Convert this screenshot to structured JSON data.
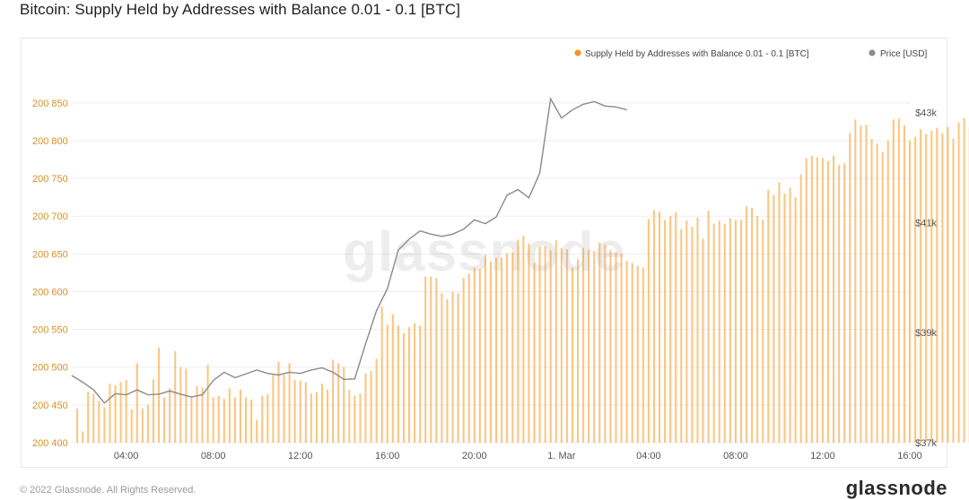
{
  "title": "Bitcoin: Supply Held by Addresses with Balance 0.01 - 0.1 [BTC]",
  "footer": {
    "copyright": "© 2022 Glassnode. All Rights Reserved.",
    "logo": "glassnode"
  },
  "watermark": "glassnode",
  "colors": {
    "supply": "#f7931a",
    "price": "#8a8a8a"
  },
  "chart_data": {
    "type": "bar",
    "title": "Bitcoin: Supply Held by Addresses with Balance 0.01 - 0.1 [BTC]",
    "x_range_hours": [
      1.5,
      40.0
    ],
    "x_ticks": [
      {
        "label": "04:00",
        "h": 4
      },
      {
        "label": "08:00",
        "h": 8
      },
      {
        "label": "12:00",
        "h": 12
      },
      {
        "label": "16:00",
        "h": 16
      },
      {
        "label": "20:00",
        "h": 20
      },
      {
        "label": "1. Mar",
        "h": 24
      },
      {
        "label": "04:00",
        "h": 28
      },
      {
        "label": "08:00",
        "h": 32
      },
      {
        "label": "12:00",
        "h": 36
      },
      {
        "label": "16:00",
        "h": 40
      }
    ],
    "y_left": {
      "range": [
        200400,
        200870
      ],
      "ticks": [
        {
          "label": "200 400",
          "v": 200400
        },
        {
          "label": "200 450",
          "v": 200450
        },
        {
          "label": "200 500",
          "v": 200500
        },
        {
          "label": "200 550",
          "v": 200550
        },
        {
          "label": "200 600",
          "v": 200600
        },
        {
          "label": "200 650",
          "v": 200650
        },
        {
          "label": "200 700",
          "v": 200700
        },
        {
          "label": "200 750",
          "v": 200750
        },
        {
          "label": "200 800",
          "v": 200800
        },
        {
          "label": "200 850",
          "v": 200850
        }
      ]
    },
    "y_right": {
      "range": [
        37000,
        43450
      ],
      "ticks": [
        {
          "label": "$37k",
          "v": 37000
        },
        {
          "label": "$39k",
          "v": 39000
        },
        {
          "label": "$41k",
          "v": 41000
        },
        {
          "label": "$43k",
          "v": 43000
        }
      ]
    },
    "legend": {
      "position": "top-right",
      "items": [
        {
          "label": "Supply Held by Addresses with Balance 0.01 - 0.1 [BTC]",
          "color": "#f7931a"
        },
        {
          "label": "Price [USD]",
          "color": "#8a8a8a"
        }
      ]
    },
    "grid": true,
    "series": [
      {
        "name": "Supply Held by Addresses with Balance 0.01 - 0.1 [BTC]",
        "kind": "bar",
        "x_start_hours": 1.75,
        "step_hours": 0.25,
        "values": [
          200445,
          200415,
          200467,
          200465,
          200455,
          200447,
          200478,
          200476,
          200480,
          200483,
          200444,
          200505,
          200445,
          200450,
          200484,
          200526,
          200460,
          200472,
          200521,
          200500,
          200498,
          200460,
          200475,
          200473,
          200503,
          200460,
          200462,
          200458,
          200472,
          200460,
          200470,
          200460,
          200457,
          200430,
          200462,
          200464,
          200490,
          200507,
          200490,
          200505,
          200483,
          200482,
          200480,
          200465,
          200467,
          200478,
          200470,
          200510,
          200505,
          200500,
          200470,
          200462,
          200465,
          200492,
          200495,
          200511,
          200580,
          200556,
          200570,
          200555,
          200545,
          200553,
          200558,
          200555,
          200620,
          200620,
          200618,
          200598,
          200590,
          200600,
          200598,
          200618,
          200624,
          200632,
          200630,
          200649,
          200640,
          200645,
          200645,
          200651,
          200652,
          200669,
          200674,
          200664,
          200638,
          200660,
          200660,
          200655,
          200668,
          200658,
          200656,
          200632,
          200643,
          200658,
          200656,
          200654,
          200665,
          200662,
          200655,
          200652,
          200650,
          200641,
          200638,
          200634,
          200632,
          200696,
          200708,
          200706,
          200695,
          200700,
          200705,
          200683,
          200694,
          200686,
          200698,
          200670,
          200707,
          200690,
          200694,
          200690,
          200697,
          200695,
          200695,
          200713,
          200711,
          200700,
          200695,
          200735,
          200728,
          200745,
          200730,
          200738,
          200725,
          200755,
          200777,
          200780,
          200778,
          200777,
          200773,
          200780,
          200768,
          200770,
          200810,
          200828,
          200820,
          200821,
          200802,
          200796,
          200785,
          200800,
          200828,
          200829,
          200820,
          200800,
          200805,
          200815,
          200809,
          200813,
          200817,
          200810,
          200818,
          200803,
          200824,
          200830,
          200817,
          200830,
          200823,
          200815,
          200838,
          200825,
          200830,
          200832,
          200812,
          200825,
          200820
        ]
      },
      {
        "name": "Price [USD]",
        "kind": "line",
        "points": [
          [
            1.5,
            38220
          ],
          [
            2.0,
            38100
          ],
          [
            2.5,
            37960
          ],
          [
            3.0,
            37720
          ],
          [
            3.5,
            37890
          ],
          [
            4.0,
            37870
          ],
          [
            4.5,
            37960
          ],
          [
            5.0,
            37870
          ],
          [
            5.5,
            37880
          ],
          [
            6.0,
            37940
          ],
          [
            6.5,
            37880
          ],
          [
            7.0,
            37830
          ],
          [
            7.5,
            37870
          ],
          [
            8.0,
            38130
          ],
          [
            8.5,
            38280
          ],
          [
            9.0,
            38180
          ],
          [
            9.5,
            38250
          ],
          [
            10.0,
            38320
          ],
          [
            10.5,
            38260
          ],
          [
            11.0,
            38230
          ],
          [
            11.5,
            38280
          ],
          [
            12.0,
            38260
          ],
          [
            12.5,
            38320
          ],
          [
            13.0,
            38360
          ],
          [
            13.5,
            38280
          ],
          [
            14.0,
            38150
          ],
          [
            14.5,
            38160
          ],
          [
            15.0,
            38800
          ],
          [
            15.5,
            39400
          ],
          [
            16.0,
            39800
          ],
          [
            16.5,
            40500
          ],
          [
            17.0,
            40700
          ],
          [
            17.5,
            40850
          ],
          [
            18.0,
            40790
          ],
          [
            18.5,
            40750
          ],
          [
            19.0,
            40790
          ],
          [
            19.5,
            40880
          ],
          [
            20.0,
            41050
          ],
          [
            20.5,
            40980
          ],
          [
            21.0,
            41100
          ],
          [
            21.5,
            41500
          ],
          [
            22.0,
            41600
          ],
          [
            22.5,
            41450
          ],
          [
            23.0,
            41900
          ],
          [
            23.5,
            43250
          ],
          [
            24.0,
            42900
          ],
          [
            24.5,
            43050
          ],
          [
            25.0,
            43150
          ],
          [
            25.5,
            43200
          ],
          [
            26.0,
            43120
          ],
          [
            26.5,
            43100
          ],
          [
            27.0,
            43050
          ]
        ]
      }
    ]
  }
}
